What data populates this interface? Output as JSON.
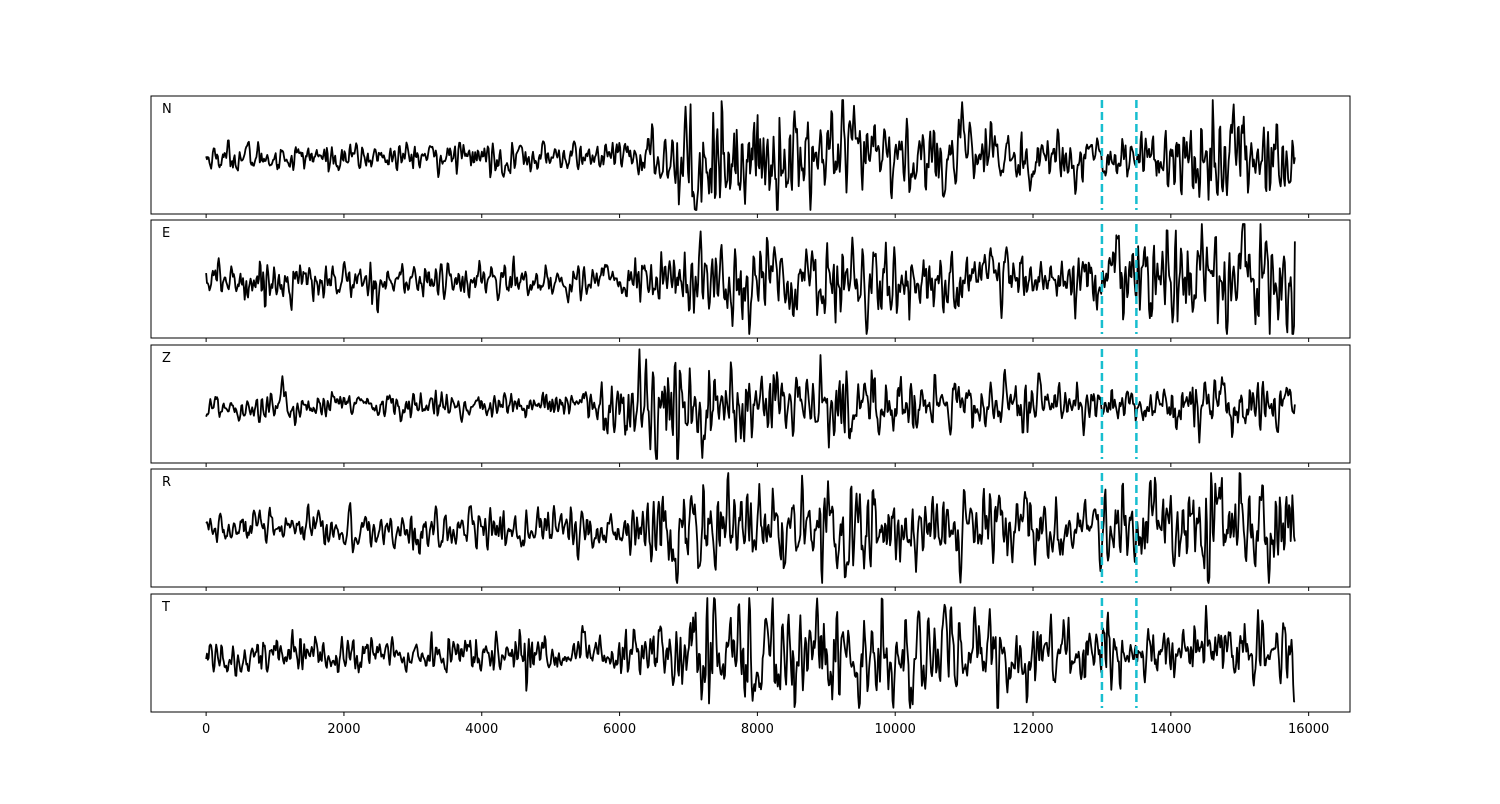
{
  "chart_data": {
    "type": "line",
    "title": "",
    "xlabel": "",
    "ylabel": "",
    "xlim": [
      -800,
      16600
    ],
    "x_ticks": [
      0,
      2000,
      4000,
      6000,
      8000,
      10000,
      12000,
      14000,
      16000
    ],
    "x_tick_labels": [
      "0",
      "2000",
      "4000",
      "6000",
      "8000",
      "10000",
      "12000",
      "14000",
      "16000"
    ],
    "grid": false,
    "legend": "none",
    "trace_color": "#000000",
    "marker_color": "#17becf",
    "vertical_markers_x": [
      13000,
      13500
    ],
    "x_range": [
      0,
      15800
    ],
    "panels": [
      {
        "label": "N",
        "envelope": [
          [
            0,
            0.2
          ],
          [
            1000,
            0.22
          ],
          [
            2000,
            0.2
          ],
          [
            3000,
            0.2
          ],
          [
            4000,
            0.24
          ],
          [
            4600,
            0.3
          ],
          [
            5000,
            0.2
          ],
          [
            6000,
            0.22
          ],
          [
            6500,
            0.4
          ],
          [
            7000,
            0.9
          ],
          [
            7300,
            1.0
          ],
          [
            7700,
            0.85
          ],
          [
            8500,
            0.65
          ],
          [
            9000,
            0.75
          ],
          [
            10000,
            0.55
          ],
          [
            11000,
            0.55
          ],
          [
            12000,
            0.45
          ],
          [
            12900,
            0.3
          ],
          [
            13500,
            0.35
          ],
          [
            14000,
            0.55
          ],
          [
            14600,
            0.9
          ],
          [
            15200,
            0.6
          ],
          [
            15800,
            0.65
          ]
        ]
      },
      {
        "label": "E",
        "envelope": [
          [
            0,
            0.28
          ],
          [
            1000,
            0.3
          ],
          [
            2000,
            0.28
          ],
          [
            3000,
            0.28
          ],
          [
            4000,
            0.26
          ],
          [
            5000,
            0.28
          ],
          [
            6000,
            0.32
          ],
          [
            6500,
            0.45
          ],
          [
            7000,
            0.62
          ],
          [
            8000,
            0.55
          ],
          [
            9000,
            0.55
          ],
          [
            10000,
            0.5
          ],
          [
            11000,
            0.48
          ],
          [
            12000,
            0.45
          ],
          [
            12800,
            0.35
          ],
          [
            13000,
            0.6
          ],
          [
            13300,
            0.75
          ],
          [
            14000,
            0.65
          ],
          [
            14600,
            0.95
          ],
          [
            15000,
            0.75
          ],
          [
            15800,
            0.85
          ]
        ]
      },
      {
        "label": "Z",
        "envelope": [
          [
            0,
            0.22
          ],
          [
            1000,
            0.26
          ],
          [
            2000,
            0.22
          ],
          [
            3000,
            0.22
          ],
          [
            4000,
            0.2
          ],
          [
            5000,
            0.2
          ],
          [
            5700,
            0.35
          ],
          [
            6300,
            0.8
          ],
          [
            6600,
            1.0
          ],
          [
            7000,
            0.75
          ],
          [
            8000,
            0.5
          ],
          [
            9000,
            0.58
          ],
          [
            10000,
            0.5
          ],
          [
            11000,
            0.42
          ],
          [
            12000,
            0.38
          ],
          [
            13000,
            0.3
          ],
          [
            14000,
            0.42
          ],
          [
            15000,
            0.4
          ],
          [
            15800,
            0.4
          ]
        ]
      },
      {
        "label": "R",
        "envelope": [
          [
            0,
            0.2
          ],
          [
            1000,
            0.22
          ],
          [
            2000,
            0.25
          ],
          [
            3000,
            0.25
          ],
          [
            4000,
            0.25
          ],
          [
            5000,
            0.25
          ],
          [
            6000,
            0.3
          ],
          [
            6600,
            0.5
          ],
          [
            7000,
            0.7
          ],
          [
            8000,
            0.62
          ],
          [
            9000,
            0.55
          ],
          [
            10000,
            0.48
          ],
          [
            11000,
            0.45
          ],
          [
            12000,
            0.42
          ],
          [
            12900,
            0.3
          ],
          [
            13200,
            0.7
          ],
          [
            13500,
            0.45
          ],
          [
            14000,
            0.5
          ],
          [
            14600,
            1.0
          ],
          [
            15000,
            0.55
          ],
          [
            15800,
            0.7
          ]
        ]
      },
      {
        "label": "T",
        "envelope": [
          [
            0,
            0.22
          ],
          [
            1000,
            0.28
          ],
          [
            2000,
            0.25
          ],
          [
            3000,
            0.25
          ],
          [
            4000,
            0.3
          ],
          [
            4600,
            0.4
          ],
          [
            5000,
            0.25
          ],
          [
            6000,
            0.25
          ],
          [
            6600,
            0.4
          ],
          [
            7000,
            0.7
          ],
          [
            7200,
            0.92
          ],
          [
            8000,
            0.7
          ],
          [
            9000,
            0.72
          ],
          [
            10000,
            0.65
          ],
          [
            11000,
            0.55
          ],
          [
            12000,
            0.48
          ],
          [
            13000,
            0.45
          ],
          [
            14000,
            0.45
          ],
          [
            15000,
            0.45
          ],
          [
            15800,
            0.55
          ]
        ]
      }
    ]
  }
}
